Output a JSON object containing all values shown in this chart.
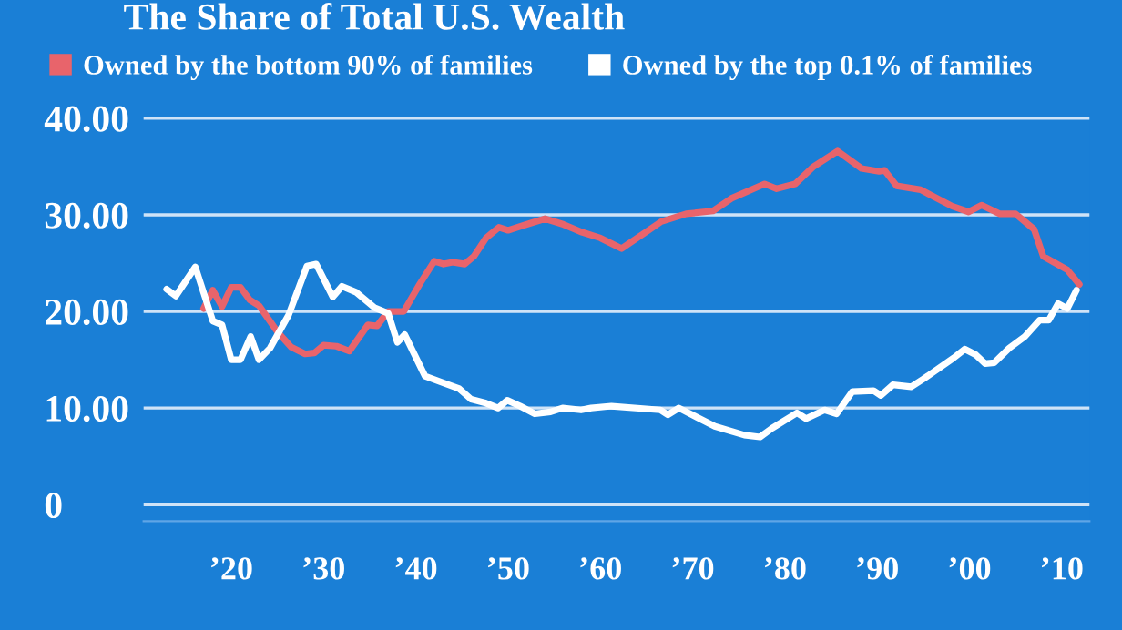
{
  "chart_data": {
    "type": "line",
    "title": "The Share of Total U.S. Wealth",
    "xlim": [
      1910.5,
      2013
    ],
    "xticks": [
      {
        "value": 1920,
        "label": "’20"
      },
      {
        "value": 1930,
        "label": "’30"
      },
      {
        "value": 1940,
        "label": "’40"
      },
      {
        "value": 1950,
        "label": "’50"
      },
      {
        "value": 1960,
        "label": "’60"
      },
      {
        "value": 1970,
        "label": "’70"
      },
      {
        "value": 1980,
        "label": "’80"
      },
      {
        "value": 1990,
        "label": "’90"
      },
      {
        "value": 2000,
        "label": "’00"
      },
      {
        "value": 2010,
        "label": "’10"
      }
    ],
    "ylim": [
      -1.7,
      40.5
    ],
    "yticks": [
      {
        "value": 0,
        "label": "0"
      },
      {
        "value": 10,
        "label": "10.00"
      },
      {
        "value": 20,
        "label": "20.00"
      },
      {
        "value": 30,
        "label": "30.00"
      },
      {
        "value": 40,
        "label": "40.00"
      }
    ],
    "grid": "y",
    "legend": "top",
    "marker": "none",
    "line_style": "solid",
    "series": [
      {
        "name": "Owned by the bottom 90% of families",
        "color": "#e8646b",
        "x": [
          1917,
          1918,
          1919,
          1920,
          1921,
          1922,
          1923,
          1925,
          1926.5,
          1928,
          1929,
          1930,
          1931.4,
          1932.8,
          1934.8,
          1935.8,
          1937,
          1938.7,
          1940.4,
          1942,
          1943,
          1944,
          1945.3,
          1946.3,
          1947.6,
          1949,
          1950,
          1952,
          1954,
          1956,
          1958,
          1960,
          1962.3,
          1966.6,
          1969.3,
          1972.2,
          1974.2,
          1977.8,
          1979.1,
          1981.1,
          1983.1,
          1985.7,
          1988.3,
          1990.2,
          1990.8,
          1992.1,
          1994.7,
          1998.1,
          1999.9,
          2001.3,
          2003.3,
          2005,
          2007,
          2008,
          2010.6,
          2011.9
        ],
        "values": [
          20.3,
          22.2,
          20.5,
          22.5,
          22.5,
          21.2,
          20.6,
          17.9,
          16.3,
          15.6,
          15.7,
          16.5,
          16.4,
          15.9,
          18.6,
          18.5,
          20.0,
          20.0,
          22.8,
          25.2,
          24.9,
          25.1,
          24.9,
          25.7,
          27.6,
          28.7,
          28.4,
          29.0,
          29.6,
          29.0,
          28.2,
          27.6,
          26.5,
          29.3,
          30.1,
          30.4,
          31.7,
          33.2,
          32.7,
          33.2,
          35.0,
          36.6,
          34.8,
          34.5,
          34.6,
          33.0,
          32.6,
          30.9,
          30.3,
          31.0,
          30.1,
          30.1,
          28.5,
          25.7,
          24.3,
          22.8
        ]
      },
      {
        "name": "Owned by the top 0.1% of families",
        "color": "#ffffff",
        "x": [
          1913,
          1914,
          1916.1,
          1918,
          1919,
          1920,
          1921,
          1922.1,
          1923,
          1924.2,
          1926.2,
          1928.2,
          1929.2,
          1931,
          1932,
          1933.5,
          1935.5,
          1937,
          1938,
          1938.8,
          1941,
          1943,
          1944.7,
          1946,
          1947.6,
          1948.9,
          1949.9,
          1951.3,
          1952.9,
          1954.6,
          1955.9,
          1957.9,
          1959,
          1961.2,
          1966.5,
          1967.3,
          1968.5,
          1972.4,
          1975.6,
          1977.3,
          1978.6,
          1981.3,
          1982.3,
          1984.3,
          1985.6,
          1987.3,
          1989.6,
          1990.4,
          1991.7,
          1993.7,
          1995,
          1998.3,
          1999.5,
          2000.7,
          2001.7,
          2002.7,
          2004.3,
          2006,
          2007.6,
          2008.6,
          2009.6,
          2010.6,
          2011.6
        ],
        "values": [
          22.3,
          21.6,
          24.6,
          19.0,
          18.6,
          15.0,
          15.0,
          17.4,
          15.0,
          16.2,
          19.6,
          24.7,
          24.9,
          21.5,
          22.6,
          22.0,
          20.4,
          19.8,
          16.8,
          17.6,
          13.3,
          12.6,
          12.0,
          10.9,
          10.5,
          10.0,
          10.8,
          10.2,
          9.4,
          9.6,
          10.0,
          9.8,
          10.0,
          10.2,
          9.8,
          9.3,
          10.0,
          8.1,
          7.2,
          7.0,
          7.9,
          9.5,
          8.9,
          9.8,
          9.4,
          11.7,
          11.8,
          11.3,
          12.4,
          12.2,
          13.0,
          15.2,
          16.1,
          15.5,
          14.6,
          14.7,
          16.2,
          17.4,
          19.1,
          19.1,
          20.8,
          20.3,
          22.2
        ]
      }
    ]
  }
}
